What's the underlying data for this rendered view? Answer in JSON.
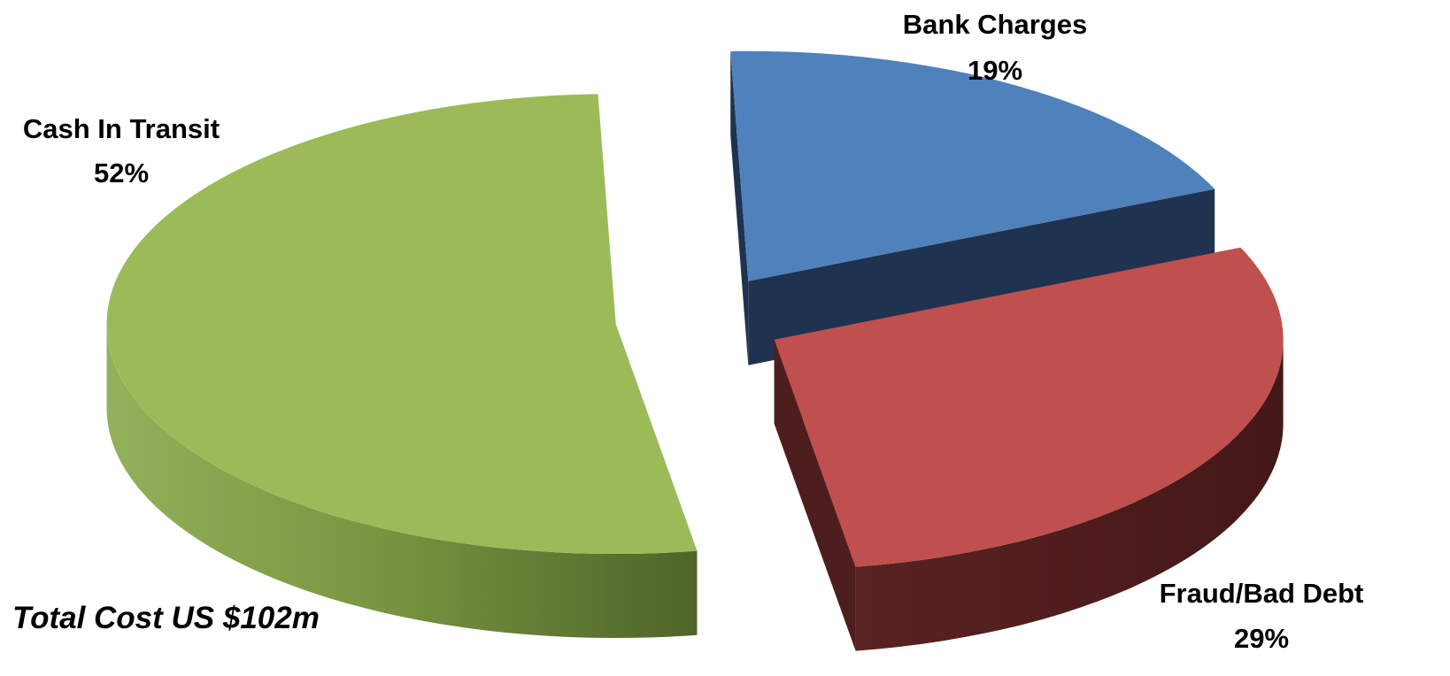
{
  "chart_data": {
    "type": "pie",
    "style": "3d-exploded",
    "total_label": "Total Cost  US $102m",
    "slices": [
      {
        "label": "Bank Charges",
        "value": 19,
        "value_label": "19%",
        "color": "#4F81BD",
        "side_color": "#1F3250"
      },
      {
        "label": "Fraud/Bad Debt",
        "value": 29,
        "value_label": "29%",
        "color": "#C0504D",
        "side_color": "#4E1E1E"
      },
      {
        "label": "Cash In Transit",
        "value": 52,
        "value_label": "52%",
        "color": "#9BBB59",
        "side_color": "#6E8A3A"
      }
    ]
  }
}
